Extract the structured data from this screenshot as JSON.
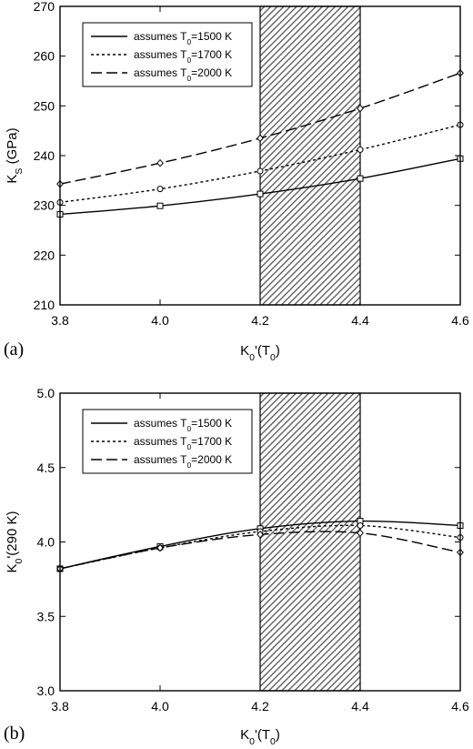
{
  "chart_data": [
    {
      "type": "line",
      "panel_label": "(a)",
      "xlabel_main": "K",
      "xlabel_sub": "0",
      "xlabel_rest": "'(T",
      "xlabel_sub2": "0",
      "xlabel_end": ")",
      "ylabel_main": "K",
      "ylabel_sub": "S",
      "ylabel_rest": " (GPa)",
      "xlim": [
        3.8,
        4.6
      ],
      "ylim": [
        210,
        270
      ],
      "xticks": [
        "3.8",
        "4.0",
        "4.2",
        "4.4",
        "4.6"
      ],
      "yticks": [
        "210",
        "220",
        "230",
        "240",
        "250",
        "260",
        "270"
      ],
      "shaded_x_range": [
        4.2,
        4.4
      ],
      "legend_position": "top-left",
      "series": [
        {
          "name_pre": "assumes T",
          "name_sub": "0",
          "name_post": "=1500 K",
          "dash": "solid",
          "marker": "square",
          "x": [
            3.8,
            4.0,
            4.2,
            4.4,
            4.6
          ],
          "y": [
            228.2,
            229.9,
            232.3,
            235.4,
            239.4
          ]
        },
        {
          "name_pre": "assumes T",
          "name_sub": "0",
          "name_post": "=1700 K",
          "dash": "dotted",
          "marker": "circle",
          "x": [
            3.8,
            4.0,
            4.2,
            4.4,
            4.6
          ],
          "y": [
            230.6,
            233.3,
            236.9,
            241.2,
            246.2
          ]
        },
        {
          "name_pre": "assumes T",
          "name_sub": "0",
          "name_post": "=2000 K",
          "dash": "dashed",
          "marker": "diamond",
          "x": [
            3.8,
            4.0,
            4.2,
            4.4,
            4.6
          ],
          "y": [
            234.3,
            238.5,
            243.5,
            249.5,
            256.6
          ]
        }
      ]
    },
    {
      "type": "line",
      "panel_label": "(b)",
      "xlabel_main": "K",
      "xlabel_sub": "0",
      "xlabel_rest": "'(T",
      "xlabel_sub2": "0",
      "xlabel_end": ")",
      "ylabel_main": "K",
      "ylabel_sub": "0",
      "ylabel_rest": "'(290 K)",
      "xlim": [
        3.8,
        4.6
      ],
      "ylim": [
        3.0,
        5.0
      ],
      "xticks": [
        "3.8",
        "4.0",
        "4.2",
        "4.4",
        "4.6"
      ],
      "yticks": [
        "3.0",
        "3.5",
        "4.0",
        "4.5",
        "5.0"
      ],
      "shaded_x_range": [
        4.2,
        4.4
      ],
      "legend_position": "top-left",
      "series": [
        {
          "name_pre": "assumes T",
          "name_sub": "0",
          "name_post": "=1500 K",
          "dash": "solid",
          "marker": "square",
          "x": [
            3.8,
            4.0,
            4.2,
            4.4,
            4.6
          ],
          "y": [
            3.82,
            3.97,
            4.09,
            4.14,
            4.11
          ]
        },
        {
          "name_pre": "assumes T",
          "name_sub": "0",
          "name_post": "=1700 K",
          "dash": "dotted",
          "marker": "circle",
          "x": [
            3.8,
            4.0,
            4.2,
            4.4,
            4.6
          ],
          "y": [
            3.82,
            3.96,
            4.07,
            4.11,
            4.03
          ]
        },
        {
          "name_pre": "assumes T",
          "name_sub": "0",
          "name_post": "=2000 K",
          "dash": "dashed",
          "marker": "diamond",
          "x": [
            3.8,
            4.0,
            4.2,
            4.4,
            4.6
          ],
          "y": [
            3.82,
            3.96,
            4.05,
            4.06,
            3.93
          ]
        }
      ]
    }
  ]
}
